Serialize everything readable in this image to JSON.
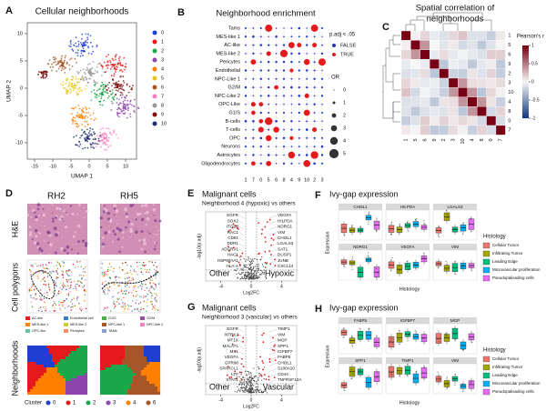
{
  "panel_a": {
    "letter": "A",
    "title": "Cellular neighborhoods",
    "x_label": "UMAP 1",
    "y_label": "UMAP 2",
    "xlim": [
      -17,
      13
    ],
    "ylim": [
      -13,
      12
    ],
    "xticks": [
      -15,
      -10,
      -5,
      0,
      5,
      10
    ],
    "yticks": [
      -10,
      -5,
      0,
      5,
      10
    ],
    "clusters": [
      "0",
      "1",
      "2",
      "3",
      "4",
      "5",
      "6",
      "7",
      "8",
      "9",
      "10"
    ],
    "cluster_colors": [
      "#1f3fd1",
      "#e41a1c",
      "#1aa64a",
      "#8e44ad",
      "#ff7f00",
      "#e6c61a",
      "#a65628",
      "#f781bf",
      "#999999",
      "#7f1010",
      "#1f2f6f"
    ]
  },
  "panel_b": {
    "letter": "B",
    "title": "Neighborhood enrichment",
    "rows": [
      "Tams",
      "MES-like 1",
      "AC-like",
      "MES-like 2",
      "Pericytes",
      "Endothelial",
      "NPC-Like 1",
      "G2/M",
      "NPC-Like 2",
      "OPC-Like",
      "G1/S",
      "B-cells",
      "T-cells",
      "OPC",
      "Neurons",
      "Astrocytes",
      "Oligodendrocytes"
    ],
    "columns": [
      "1",
      "7",
      "0",
      "5",
      "6",
      "8",
      "4",
      "9",
      "10",
      "2",
      "3"
    ],
    "significance_title": "p.adj < .05",
    "significance_levels": [
      {
        "label": "FALSE",
        "color": "#2233cc"
      },
      {
        "label": "TRUE",
        "color": "#e41a1c"
      }
    ],
    "size_title": "OR",
    "size_levels": [
      0,
      1,
      2,
      3,
      4,
      5
    ]
  },
  "panel_c": {
    "letter": "C",
    "title_lines": [
      "Spatial correlation of",
      "neighborhoods"
    ],
    "labels": [
      "1",
      "5",
      "6",
      "9",
      "2",
      "3",
      "10",
      "4",
      "8",
      "0",
      "7"
    ],
    "colorbar_title": "Pearson's r",
    "colorbar_ticks": [
      1,
      0.5,
      0,
      -0.5,
      -1
    ]
  },
  "panel_d": {
    "letter": "D",
    "samples": [
      "RH2",
      "RH5"
    ],
    "rows": [
      "H&E",
      "Cell polygons",
      "Neighborhoods"
    ],
    "cell_types": [
      {
        "label": "AC-like",
        "color": "#e41a1c"
      },
      {
        "label": "Endothelial cell",
        "color": "#377eb8"
      },
      {
        "label": "G1/S",
        "color": "#4daf4a"
      },
      {
        "label": "G2/M",
        "color": "#984ea3"
      },
      {
        "label": "MES-like 1",
        "color": "#ff7f00"
      },
      {
        "label": "MES-like 2",
        "color": "#cccc33"
      },
      {
        "label": "NPC-like 1",
        "color": "#a65628"
      },
      {
        "label": "NPC-like 2",
        "color": "#f781bf"
      },
      {
        "label": "OPC-like",
        "color": "#66c2a5"
      },
      {
        "label": "Pericytes",
        "color": "#fc8d62"
      },
      {
        "label": "TAMs",
        "color": "#8da0cb"
      }
    ],
    "cluster_title": "Cluster",
    "clusters": [
      {
        "label": "0",
        "color": "#1f3fd1"
      },
      {
        "label": "1",
        "color": "#e41a1c"
      },
      {
        "label": "2",
        "color": "#1aa64a"
      },
      {
        "label": "3",
        "color": "#8e44ad"
      },
      {
        "label": "4",
        "color": "#ff7f00"
      },
      {
        "label": "6",
        "color": "#a65628"
      }
    ]
  },
  "panel_e": {
    "letter": "E",
    "title": "Malignant cells",
    "subtitle": "Neighborhood 4 (hypoxic) vs others",
    "left_label": "Other",
    "right_label": "Hypoxic",
    "x_label": "Log2FC",
    "y_label": "-log10(p.adj)",
    "xlim": [
      -6,
      6
    ],
    "xticks": [
      -4,
      0,
      4
    ],
    "down_genes": [
      "EGFR",
      "SOX2",
      "ITGB8",
      "RAC1",
      "CD81",
      "DDR1",
      "ADGRV1",
      "HAC1",
      "HSP90AA1",
      "HLA-A"
    ],
    "up_genes": [
      "VEGFA",
      "HILPDA",
      "NDRG1",
      "VIM",
      "CHI3L1",
      "LGALS3",
      "SAT1",
      "DUSP1",
      "JUNB",
      "CXCL14"
    ]
  },
  "panel_f": {
    "letter": "F",
    "title": "Ivy-gap expression",
    "genes": [
      "CHI3L1",
      "HILPDA",
      "LGALS3",
      "NDRG1",
      "VEGFA",
      "VIM"
    ],
    "y_label": "Expression",
    "x_label": "Histology",
    "legend_title": "Histology",
    "histologies": [
      {
        "label": "Cellular Tumor",
        "color": "#e8766d"
      },
      {
        "label": "Infiltrating Tumor",
        "color": "#a3a500"
      },
      {
        "label": "Leading Edge",
        "color": "#00bf7d"
      },
      {
        "label": "Microvascular proliferation",
        "color": "#00b0f6"
      },
      {
        "label": "Pseudopalisading cells",
        "color": "#e76bf3"
      }
    ]
  },
  "panel_g": {
    "letter": "G",
    "title": "Malignant cells",
    "subtitle": "Neighborhood 3 (vascular) vs others",
    "left_label": "Other",
    "right_label": "Vascular",
    "x_label": "Log2FC",
    "y_label": "-log10(p.adj)",
    "xlim": [
      -6,
      6
    ],
    "xticks": [
      -4,
      0,
      4
    ],
    "down_genes": [
      "EGFR",
      "NTRK2",
      "MT1X",
      "MALAT1",
      "MX1",
      "VEGFA",
      "GPR98",
      "SPARCL1",
      "LTF",
      "STAT1"
    ],
    "up_genes": [
      "TIMP1",
      "VIM",
      "MGP",
      "SPP1",
      "IGFBP7",
      "FABP5",
      "CHI3L1",
      "S100A10",
      "CD44",
      "TNFRSF12A"
    ]
  },
  "panel_h": {
    "letter": "H",
    "title": "Ivy-gap expression",
    "genes": [
      "FABP5",
      "IGFBP7",
      "MGP",
      "SPP1",
      "TIMP1",
      "VIM"
    ],
    "y_label": "Expression",
    "x_label": "Histology",
    "legend_title": "Histology",
    "histologies": [
      {
        "label": "Cellular Tumor",
        "color": "#e8766d"
      },
      {
        "label": "Infiltrating Tumor",
        "color": "#a3a500"
      },
      {
        "label": "Leading Edge",
        "color": "#00bf7d"
      },
      {
        "label": "Microvascular proliferation",
        "color": "#00b0f6"
      },
      {
        "label": "Pseudopalisading cells",
        "color": "#e76bf3"
      }
    ]
  }
}
